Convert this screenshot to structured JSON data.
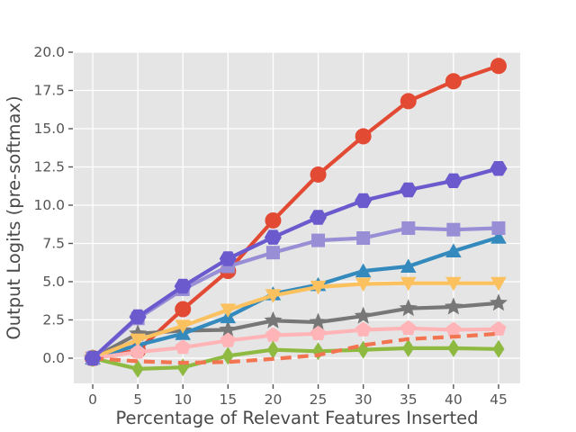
{
  "figure": {
    "background": "#ffffff"
  },
  "chart_data": {
    "type": "line",
    "title": "",
    "xlabel": "Percentage of Relevant Features Inserted",
    "ylabel": "Output Logits (pre-softmax)",
    "x": [
      0,
      5,
      10,
      15,
      20,
      25,
      30,
      35,
      40,
      45
    ],
    "xtick_labels": [
      "0",
      "5",
      "10",
      "15",
      "20",
      "25",
      "30",
      "35",
      "40",
      "45"
    ],
    "ytick_values": [
      0,
      2.5,
      5,
      7.5,
      10,
      12.5,
      15,
      17.5,
      20
    ],
    "ytick_labels": [
      "0.0",
      "2.5",
      "5.0",
      "7.5",
      "10.0",
      "12.5",
      "15.0",
      "17.5",
      "20.0"
    ],
    "xlim": [
      -2.1,
      47.4
    ],
    "ylim": [
      -1.65,
      20.0
    ],
    "grid": true,
    "legend": false,
    "plot_background": "#e5e5e5",
    "grid_color": "#ffffff",
    "tick_color": "#555555",
    "series": [
      {
        "name": "red-circles",
        "marker": "circle",
        "line": "solid",
        "color": "#e24a33",
        "values": [
          0,
          0.5,
          3.2,
          5.7,
          9.0,
          12.0,
          14.5,
          16.8,
          18.1,
          19.1
        ]
      },
      {
        "name": "gray-stars",
        "marker": "star",
        "line": "solid",
        "color": "#777777",
        "values": [
          0,
          1.6,
          1.8,
          1.85,
          2.45,
          2.35,
          2.75,
          3.25,
          3.35,
          3.6
        ]
      },
      {
        "name": "blue-triangles-up",
        "marker": "triangle-up",
        "line": "solid",
        "color": "#348abd",
        "values": [
          0,
          0.85,
          1.6,
          2.7,
          4.2,
          4.8,
          5.7,
          6.0,
          7.0,
          7.9
        ]
      },
      {
        "name": "yellow-triangles-down",
        "marker": "triangle-down",
        "line": "solid",
        "color": "#fbc15e",
        "values": [
          0,
          1.2,
          2.1,
          3.15,
          4.1,
          4.65,
          4.85,
          4.9,
          4.9,
          4.9
        ]
      },
      {
        "name": "pink-pentagons",
        "marker": "pentagon",
        "line": "solid",
        "color": "#ffb5b8",
        "values": [
          0,
          0.4,
          0.7,
          1.15,
          1.5,
          1.6,
          1.85,
          1.95,
          1.85,
          1.9
        ]
      },
      {
        "name": "green-diamonds",
        "marker": "diamond",
        "line": "solid",
        "color": "#8eba42",
        "values": [
          0,
          -0.7,
          -0.6,
          0.15,
          0.55,
          0.45,
          0.55,
          0.65,
          0.65,
          0.6
        ]
      },
      {
        "name": "orange-dashed-line",
        "marker": "none",
        "line": "dashed",
        "color": "#f37450",
        "values": [
          0,
          -0.2,
          -0.3,
          -0.25,
          -0.05,
          0.2,
          0.85,
          1.25,
          1.4,
          1.6
        ]
      },
      {
        "name": "light-purple-squares",
        "marker": "square",
        "line": "solid",
        "color": "#988ed5",
        "values": [
          0,
          2.6,
          4.5,
          6.0,
          6.9,
          7.7,
          7.85,
          8.5,
          8.4,
          8.5
        ]
      },
      {
        "name": "purple-hexagons",
        "marker": "hexagon",
        "line": "solid",
        "color": "#6a5acd",
        "values": [
          0,
          2.7,
          4.7,
          6.5,
          7.9,
          9.2,
          10.3,
          11.0,
          11.6,
          12.4
        ]
      }
    ]
  }
}
